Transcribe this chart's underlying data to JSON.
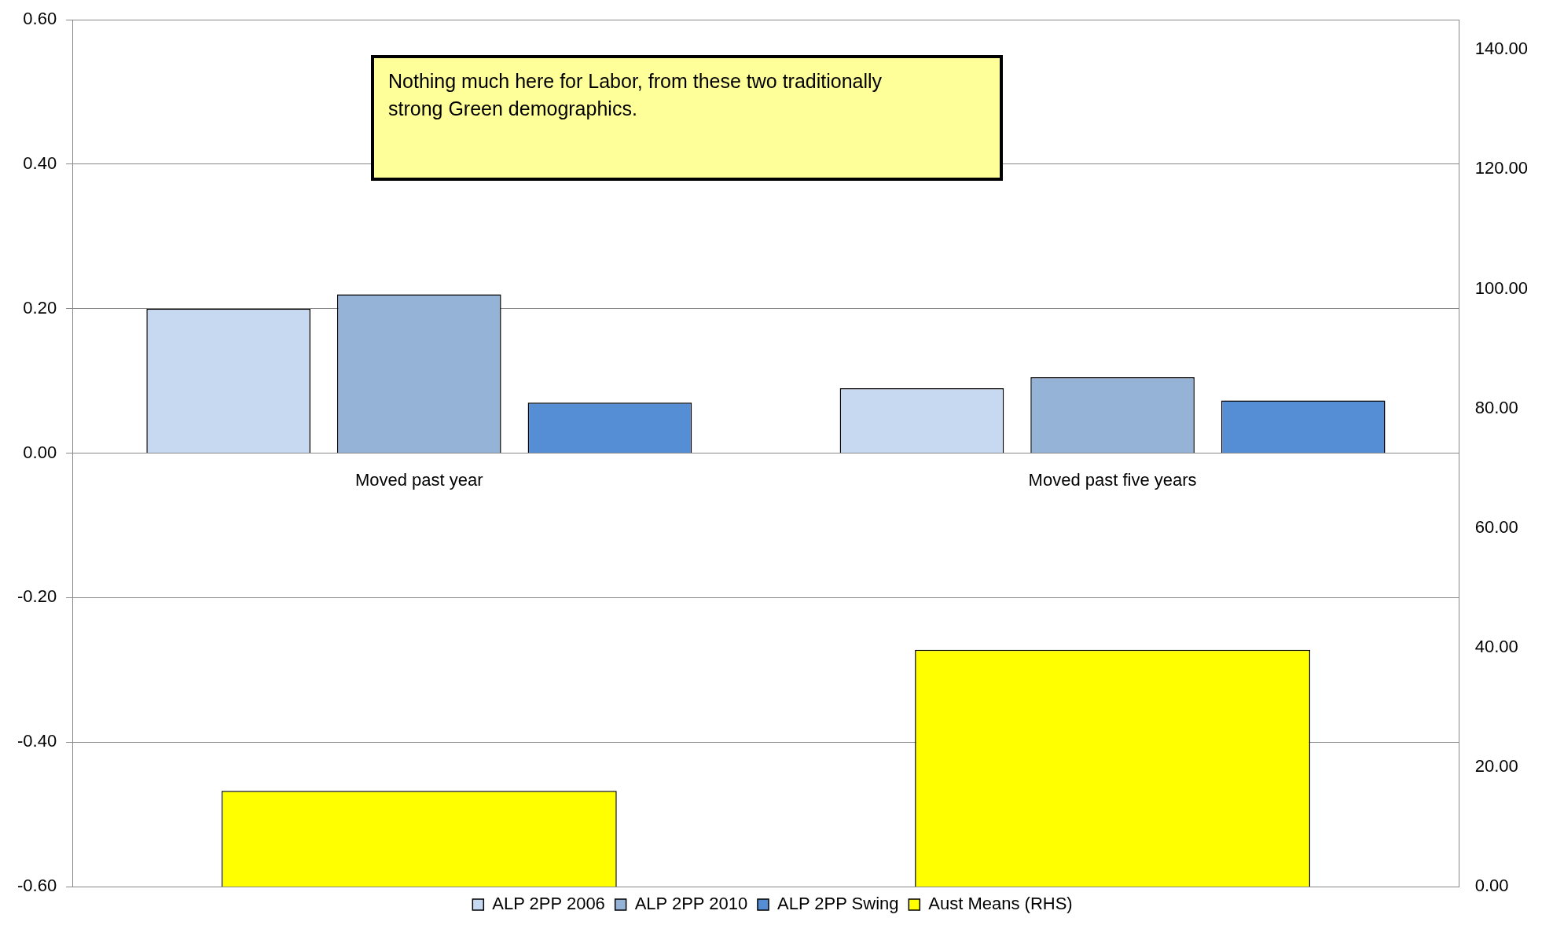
{
  "chart_data": {
    "type": "bar",
    "categories": [
      "Moved past year",
      "Moved past five years"
    ],
    "series": [
      {
        "name": "ALP 2PP 2006",
        "color": "#c6d9f1",
        "values": [
          0.2,
          0.09
        ]
      },
      {
        "name": "ALP 2PP 2010",
        "color": "#95b3d7",
        "values": [
          0.22,
          0.105
        ]
      },
      {
        "name": "ALP 2PP Swing",
        "color": "#558ed5",
        "values": [
          0.07,
          0.073
        ]
      },
      {
        "name": "Aust Means (RHS)",
        "color": "#ffff00",
        "values": [
          16,
          39.6
        ],
        "axis": "y2"
      }
    ],
    "ylim": [
      -0.6,
      0.6
    ],
    "yticks": [
      {
        "value": -0.6,
        "label": "-0.60"
      },
      {
        "value": -0.4,
        "label": "-0.40"
      },
      {
        "value": -0.2,
        "label": "-0.20"
      },
      {
        "value": 0,
        "label": "0.00"
      },
      {
        "value": 0.2,
        "label": "0.20"
      },
      {
        "value": 0.4,
        "label": "0.40"
      },
      {
        "value": 0.6,
        "label": "0.60"
      }
    ],
    "y2lim": [
      0,
      145
    ],
    "y2ticks": [
      {
        "value": 0,
        "label": "0.00"
      },
      {
        "value": 20,
        "label": "20.00"
      },
      {
        "value": 40,
        "label": "40.00"
      },
      {
        "value": 60,
        "label": "60.00"
      },
      {
        "value": 80,
        "label": "80.00"
      },
      {
        "value": 100,
        "label": "100.00"
      },
      {
        "value": 120,
        "label": "120.00"
      },
      {
        "value": 140,
        "label": "140.00"
      }
    ],
    "grid": "y",
    "legend": "bottom",
    "annotations": [
      "Nothing much here for Labor, from these two traditionally strong Green demographics."
    ]
  }
}
